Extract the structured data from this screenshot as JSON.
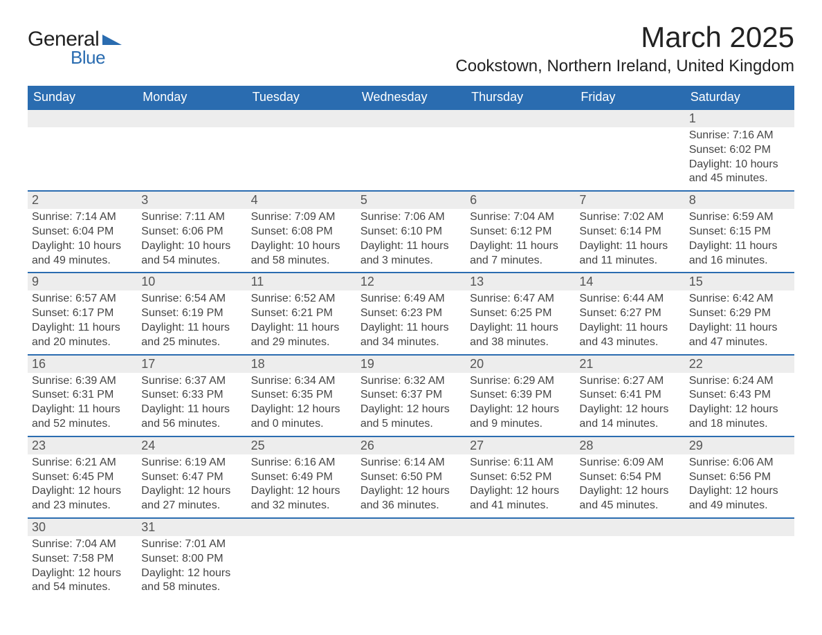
{
  "logo": {
    "text1": "General",
    "text2": "Blue",
    "accent": "#2a6cb0"
  },
  "title": "March 2025",
  "location": "Cookstown, Northern Ireland, United Kingdom",
  "colors": {
    "header_bg": "#2a6cb0",
    "header_text": "#ffffff",
    "daynum_bg": "#ededed",
    "row_divider": "#2a6cb0",
    "body_text": "#444444"
  },
  "day_headers": [
    "Sunday",
    "Monday",
    "Tuesday",
    "Wednesday",
    "Thursday",
    "Friday",
    "Saturday"
  ],
  "weeks": [
    [
      null,
      null,
      null,
      null,
      null,
      null,
      {
        "n": "1",
        "sr": "7:16 AM",
        "ss": "6:02 PM",
        "dl": "10 hours and 45 minutes."
      }
    ],
    [
      {
        "n": "2",
        "sr": "7:14 AM",
        "ss": "6:04 PM",
        "dl": "10 hours and 49 minutes."
      },
      {
        "n": "3",
        "sr": "7:11 AM",
        "ss": "6:06 PM",
        "dl": "10 hours and 54 minutes."
      },
      {
        "n": "4",
        "sr": "7:09 AM",
        "ss": "6:08 PM",
        "dl": "10 hours and 58 minutes."
      },
      {
        "n": "5",
        "sr": "7:06 AM",
        "ss": "6:10 PM",
        "dl": "11 hours and 3 minutes."
      },
      {
        "n": "6",
        "sr": "7:04 AM",
        "ss": "6:12 PM",
        "dl": "11 hours and 7 minutes."
      },
      {
        "n": "7",
        "sr": "7:02 AM",
        "ss": "6:14 PM",
        "dl": "11 hours and 11 minutes."
      },
      {
        "n": "8",
        "sr": "6:59 AM",
        "ss": "6:15 PM",
        "dl": "11 hours and 16 minutes."
      }
    ],
    [
      {
        "n": "9",
        "sr": "6:57 AM",
        "ss": "6:17 PM",
        "dl": "11 hours and 20 minutes."
      },
      {
        "n": "10",
        "sr": "6:54 AM",
        "ss": "6:19 PM",
        "dl": "11 hours and 25 minutes."
      },
      {
        "n": "11",
        "sr": "6:52 AM",
        "ss": "6:21 PM",
        "dl": "11 hours and 29 minutes."
      },
      {
        "n": "12",
        "sr": "6:49 AM",
        "ss": "6:23 PM",
        "dl": "11 hours and 34 minutes."
      },
      {
        "n": "13",
        "sr": "6:47 AM",
        "ss": "6:25 PM",
        "dl": "11 hours and 38 minutes."
      },
      {
        "n": "14",
        "sr": "6:44 AM",
        "ss": "6:27 PM",
        "dl": "11 hours and 43 minutes."
      },
      {
        "n": "15",
        "sr": "6:42 AM",
        "ss": "6:29 PM",
        "dl": "11 hours and 47 minutes."
      }
    ],
    [
      {
        "n": "16",
        "sr": "6:39 AM",
        "ss": "6:31 PM",
        "dl": "11 hours and 52 minutes."
      },
      {
        "n": "17",
        "sr": "6:37 AM",
        "ss": "6:33 PM",
        "dl": "11 hours and 56 minutes."
      },
      {
        "n": "18",
        "sr": "6:34 AM",
        "ss": "6:35 PM",
        "dl": "12 hours and 0 minutes."
      },
      {
        "n": "19",
        "sr": "6:32 AM",
        "ss": "6:37 PM",
        "dl": "12 hours and 5 minutes."
      },
      {
        "n": "20",
        "sr": "6:29 AM",
        "ss": "6:39 PM",
        "dl": "12 hours and 9 minutes."
      },
      {
        "n": "21",
        "sr": "6:27 AM",
        "ss": "6:41 PM",
        "dl": "12 hours and 14 minutes."
      },
      {
        "n": "22",
        "sr": "6:24 AM",
        "ss": "6:43 PM",
        "dl": "12 hours and 18 minutes."
      }
    ],
    [
      {
        "n": "23",
        "sr": "6:21 AM",
        "ss": "6:45 PM",
        "dl": "12 hours and 23 minutes."
      },
      {
        "n": "24",
        "sr": "6:19 AM",
        "ss": "6:47 PM",
        "dl": "12 hours and 27 minutes."
      },
      {
        "n": "25",
        "sr": "6:16 AM",
        "ss": "6:49 PM",
        "dl": "12 hours and 32 minutes."
      },
      {
        "n": "26",
        "sr": "6:14 AM",
        "ss": "6:50 PM",
        "dl": "12 hours and 36 minutes."
      },
      {
        "n": "27",
        "sr": "6:11 AM",
        "ss": "6:52 PM",
        "dl": "12 hours and 41 minutes."
      },
      {
        "n": "28",
        "sr": "6:09 AM",
        "ss": "6:54 PM",
        "dl": "12 hours and 45 minutes."
      },
      {
        "n": "29",
        "sr": "6:06 AM",
        "ss": "6:56 PM",
        "dl": "12 hours and 49 minutes."
      }
    ],
    [
      {
        "n": "30",
        "sr": "7:04 AM",
        "ss": "7:58 PM",
        "dl": "12 hours and 54 minutes."
      },
      {
        "n": "31",
        "sr": "7:01 AM",
        "ss": "8:00 PM",
        "dl": "12 hours and 58 minutes."
      },
      null,
      null,
      null,
      null,
      null
    ]
  ],
  "labels": {
    "sunrise": "Sunrise:",
    "sunset": "Sunset:",
    "daylight": "Daylight:"
  }
}
